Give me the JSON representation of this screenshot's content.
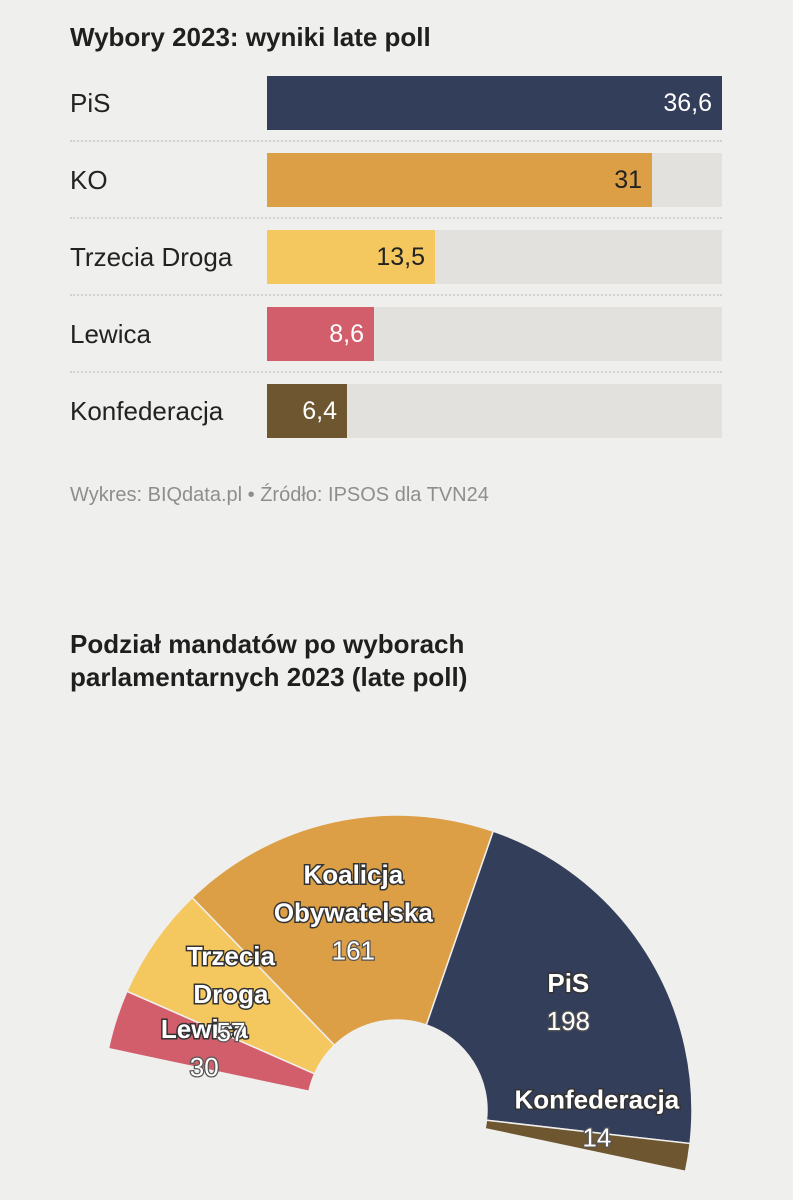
{
  "chart_data": [
    {
      "type": "bar",
      "title": "Wybory 2023: wyniki late poll",
      "categories": [
        "PiS",
        "KO",
        "Trzecia Droga",
        "Lewica",
        "Konfederacja"
      ],
      "values": [
        36.6,
        31,
        13.5,
        8.6,
        6.4
      ],
      "value_labels": [
        "36,6",
        "31",
        "13,5",
        "8,6",
        "6,4"
      ],
      "colors": [
        "#333e5a",
        "#dc9f45",
        "#f5c75f",
        "#d25e6c",
        "#6e5730"
      ],
      "value_text_colors": [
        "#ffffff",
        "#222222",
        "#222222",
        "#ffffff",
        "#ffffff"
      ],
      "xlim": [
        0,
        36.6
      ],
      "grid": false,
      "source": "Wykres: BIQdata.pl • Źródło: IPSOS dla TVN24"
    },
    {
      "type": "pie",
      "subtype": "half-donut",
      "title": "Podział mandatów po wyborach parlamentarnych 2023 (late poll)",
      "title_lines": [
        "Podział mandatów po wyborach",
        "parlamentarnych 2023 (late poll)"
      ],
      "slices": [
        {
          "name": "Lewica",
          "label_lines": [
            "Lewica"
          ],
          "value": 30,
          "color": "#d25e6c"
        },
        {
          "name": "Trzecia Droga",
          "label_lines": [
            "Trzecia",
            "Droga"
          ],
          "value": 57,
          "color": "#f5c75f"
        },
        {
          "name": "Koalicja Obywatelska",
          "label_lines": [
            "Koalicja",
            "Obywatelska"
          ],
          "value": 161,
          "color": "#dc9f45"
        },
        {
          "name": "PiS",
          "label_lines": [
            "PiS"
          ],
          "value": 198,
          "color": "#333e5a"
        },
        {
          "name": "Konfederacja",
          "label_lines": [
            "Konfederacja"
          ],
          "value": 14,
          "color": "#6e5730"
        }
      ]
    }
  ]
}
